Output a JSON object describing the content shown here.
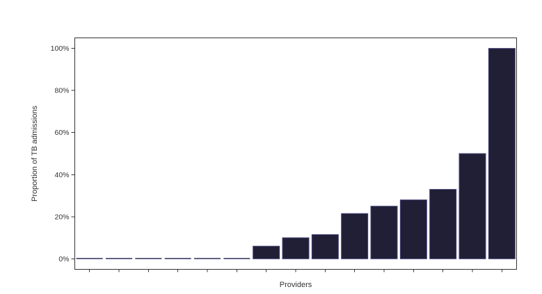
{
  "chart_data": {
    "type": "bar",
    "title": "",
    "xlabel": "Providers",
    "ylabel": "Proportion of TB admissions",
    "n_bars": 15,
    "x_tick_labels_visible": false,
    "values": [
      0,
      0,
      0,
      0,
      0,
      0,
      6,
      10,
      11.5,
      21.5,
      25,
      28,
      33,
      50,
      100
    ],
    "value_unit": "percent",
    "ytick_values": [
      0,
      20,
      40,
      60,
      80,
      100
    ],
    "ytick_labels": [
      "0%",
      "20%",
      "40%",
      "60%",
      "80%",
      "100%"
    ],
    "ylim": [
      -5,
      105
    ],
    "grid": false,
    "legend": "none",
    "colors": {
      "bar_fill": "#211f36",
      "bar_edge": "#45447a",
      "zero_bar_line": "#3b3a67",
      "axis": "#333333",
      "text": "#333333",
      "background": "#ffffff"
    }
  }
}
